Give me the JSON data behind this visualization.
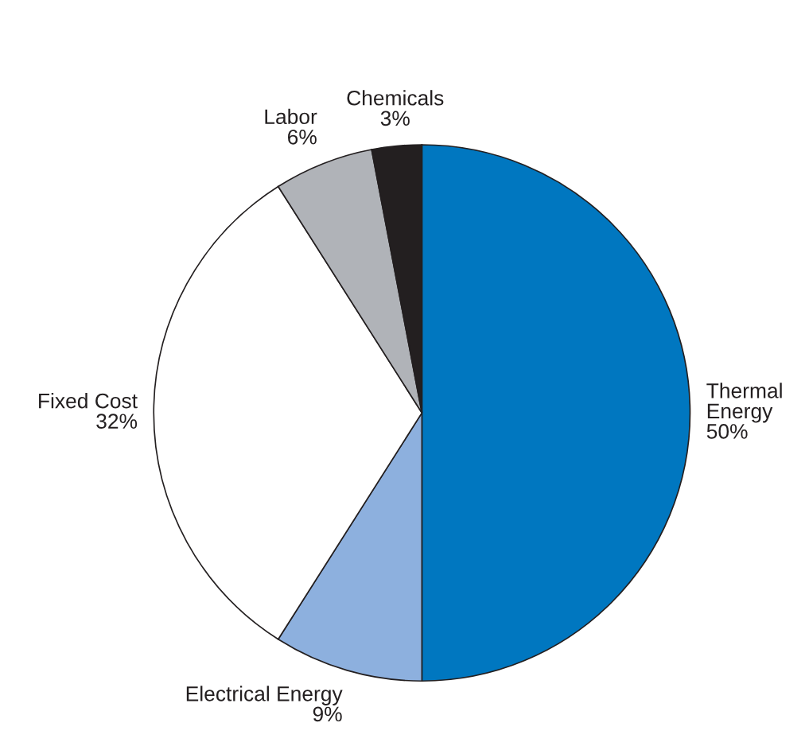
{
  "chart_data": {
    "type": "pie",
    "categories": [
      "Thermal\nEnergy",
      "Electrical Energy",
      "Fixed Cost",
      "Labor",
      "Chemicals"
    ],
    "values": [
      50,
      9,
      32,
      6,
      3
    ],
    "value_labels": [
      "50%",
      "9%",
      "32%",
      "6%",
      "3%"
    ],
    "colors": [
      "#0077c0",
      "#8db0de",
      "#ffffff",
      "#b0b3b8",
      "#231f20"
    ]
  }
}
